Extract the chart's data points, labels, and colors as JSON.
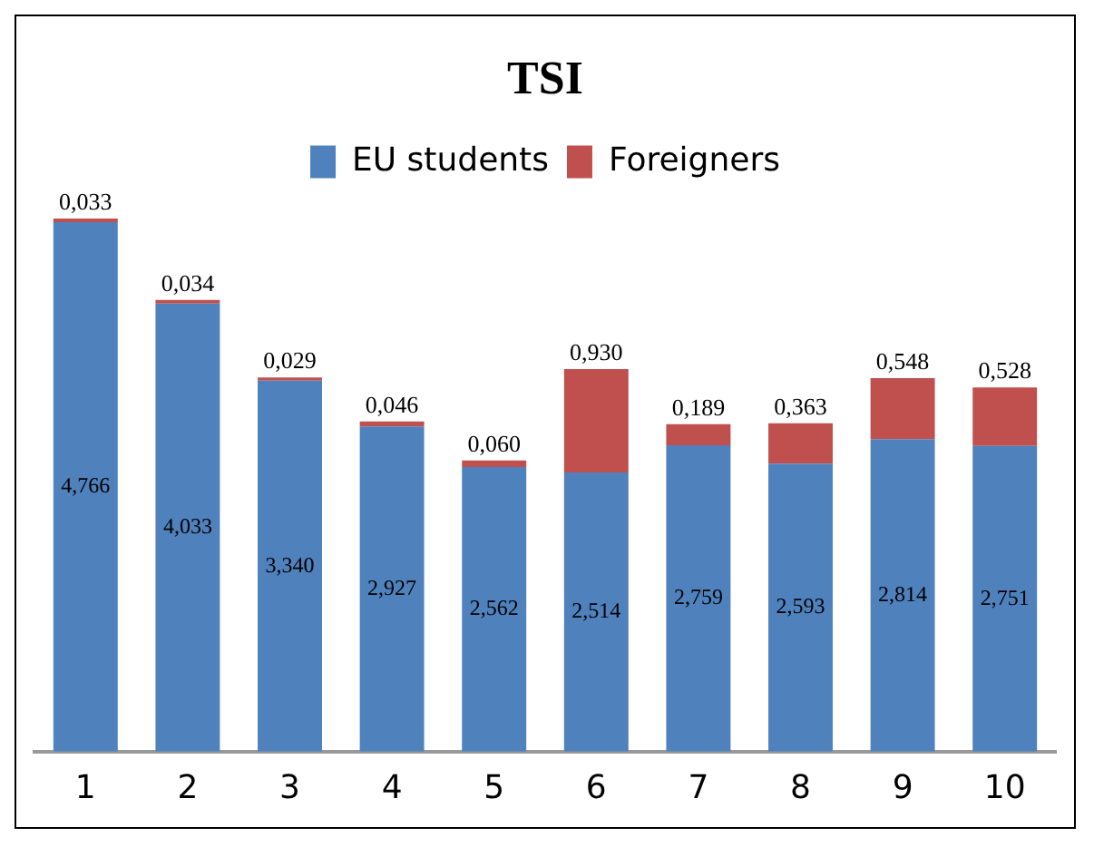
{
  "chart_data": {
    "type": "bar",
    "title": "TSI",
    "stacked": true,
    "legend": "top",
    "grid": false,
    "tick_labels": "x",
    "categories": [
      "1",
      "2",
      "3",
      "4",
      "5",
      "6",
      "7",
      "8",
      "9",
      "10"
    ],
    "series": [
      {
        "name": "EU students",
        "color": "#4f81bd",
        "values": [
          4.766,
          4.033,
          3.34,
          2.927,
          2.562,
          2.514,
          2.759,
          2.593,
          2.814,
          2.751
        ],
        "value_labels": [
          "4,766",
          "4,033",
          "3,340",
          "2,927",
          "2,562",
          "2,514",
          "2,759",
          "2,593",
          "2,814",
          "2,751"
        ]
      },
      {
        "name": "Foreigners",
        "color": "#c0504d",
        "values": [
          0.033,
          0.034,
          0.029,
          0.046,
          0.06,
          0.93,
          0.189,
          0.363,
          0.548,
          0.528
        ],
        "value_labels": [
          "0,033",
          "0,034",
          "0,029",
          "0,046",
          "0,060",
          "0,930",
          "0,189",
          "0,363",
          "0,548",
          "0,528"
        ]
      }
    ]
  }
}
